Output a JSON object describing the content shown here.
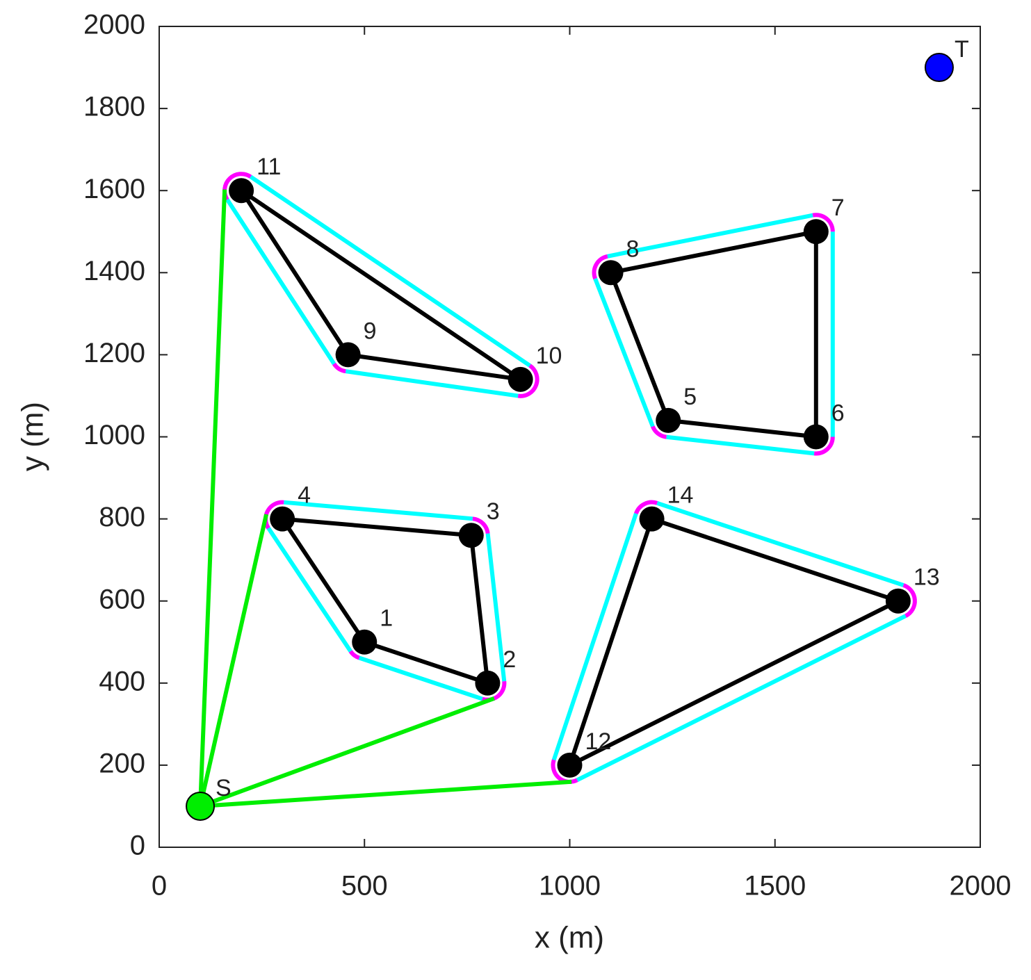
{
  "chart_data": {
    "type": "scatter",
    "xlabel": "x (m)",
    "ylabel": "y (m)",
    "xlim": [
      0,
      2000
    ],
    "ylim": [
      0,
      2000
    ],
    "xticks": [
      0,
      500,
      1000,
      1500,
      2000
    ],
    "yticks": [
      0,
      200,
      400,
      600,
      800,
      1000,
      1200,
      1400,
      1600,
      1800,
      2000
    ],
    "node_color": "#000000",
    "edge_color": "#000000",
    "buffer_color": "#00ffff",
    "corner_color": "#ff00ff",
    "link_color": "#00ee00",
    "start": {
      "label": "S",
      "x": 100,
      "y": 100,
      "color": "#00ee00"
    },
    "target": {
      "label": "T",
      "x": 1900,
      "y": 1900,
      "color": "#0000ff"
    },
    "clusters": [
      {
        "labels": [
          "4",
          "3",
          "2",
          "1"
        ],
        "x": [
          300,
          760,
          800,
          500
        ],
        "y": [
          800,
          760,
          400,
          500
        ]
      },
      {
        "labels": [
          "11",
          "10",
          "9"
        ],
        "x": [
          200,
          880,
          460
        ],
        "y": [
          1600,
          1140,
          1200
        ]
      },
      {
        "labels": [
          "8",
          "7",
          "6",
          "5"
        ],
        "x": [
          1100,
          1600,
          1600,
          1240
        ],
        "y": [
          1400,
          1500,
          1000,
          1040
        ]
      },
      {
        "labels": [
          "14",
          "13",
          "12"
        ],
        "x": [
          1200,
          1800,
          1000
        ],
        "y": [
          800,
          600,
          200
        ]
      }
    ],
    "links": [
      {
        "cluster": 1,
        "node": 0
      },
      {
        "cluster": 0,
        "node": 0
      },
      {
        "cluster": 0,
        "node": 2
      },
      {
        "cluster": 3,
        "node": 2
      }
    ]
  }
}
